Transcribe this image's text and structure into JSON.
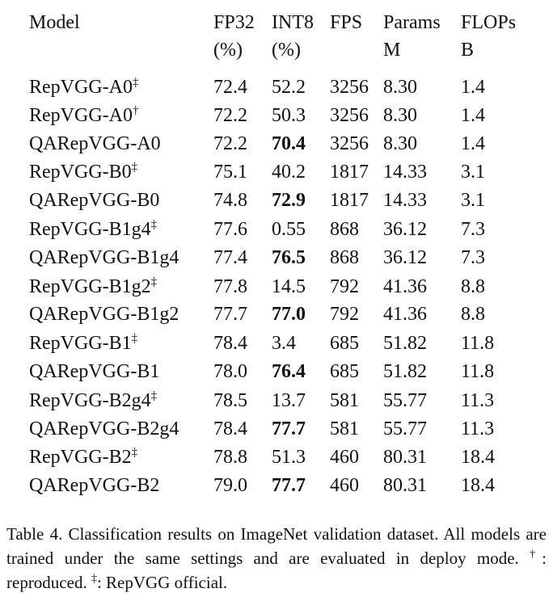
{
  "header": {
    "model": "Model",
    "fp32": [
      "FP32",
      "(%)"
    ],
    "int8": [
      "INT8",
      "(%)"
    ],
    "fps": "FPS",
    "params": [
      "Params",
      "M"
    ],
    "flops": [
      "FLOPs",
      "B"
    ]
  },
  "table": {
    "groups": [
      [
        {
          "model": "RepVGG-A0",
          "mark": "‡",
          "fp32": "72.4",
          "int8": "52.2",
          "fps": "3256",
          "params": "8.30",
          "flops": "1.4"
        },
        {
          "model": "RepVGG-A0",
          "mark": "†",
          "fp32": "72.2",
          "int8": "50.3",
          "fps": "3256",
          "params": "8.30",
          "flops": "1.4"
        },
        {
          "model": "QARepVGG-A0",
          "fp32": "72.2",
          "int8": "70.4",
          "bold": true,
          "fps": "3256",
          "params": "8.30",
          "flops": "1.4"
        }
      ],
      [
        {
          "model": "RepVGG-B0",
          "mark": "‡",
          "fp32": "75.1",
          "int8": "40.2",
          "fps": "1817",
          "params": "14.33",
          "flops": "3.1"
        },
        {
          "model": "QARepVGG-B0",
          "fp32": "74.8",
          "int8": "72.9",
          "bold": true,
          "fps": "1817",
          "params": "14.33",
          "flops": "3.1"
        }
      ],
      [
        {
          "model": "RepVGG-B1g4",
          "mark": "‡",
          "fp32": "77.6",
          "int8": "0.55",
          "fps": "868",
          "params": "36.12",
          "flops": "7.3"
        },
        {
          "model": "QARepVGG-B1g4",
          "fp32": "77.4",
          "int8": "76.5",
          "bold": true,
          "fps": "868",
          "params": "36.12",
          "flops": "7.3"
        }
      ],
      [
        {
          "model": "RepVGG-B1g2",
          "mark": "‡",
          "fp32": "77.8",
          "int8": "14.5",
          "fps": "792",
          "params": "41.36",
          "flops": "8.8"
        },
        {
          "model": "QARepVGG-B1g2",
          "fp32": "77.7",
          "int8": "77.0",
          "bold": true,
          "fps": "792",
          "params": "41.36",
          "flops": "8.8"
        }
      ],
      [
        {
          "model": "RepVGG-B1",
          "mark": "‡",
          "fp32": "78.4",
          "int8": "3.4",
          "fps": "685",
          "params": "51.82",
          "flops": "11.8"
        },
        {
          "model": "QARepVGG-B1",
          "fp32": "78.0",
          "int8": "76.4",
          "bold": true,
          "fps": "685",
          "params": "51.82",
          "flops": "11.8"
        }
      ],
      [
        {
          "model": "RepVGG-B2g4",
          "mark": "‡",
          "fp32": "78.5",
          "int8": "13.7",
          "fps": "581",
          "params": "55.77",
          "flops": "11.3"
        },
        {
          "model": "QARepVGG-B2g4",
          "fp32": "78.4",
          "int8": "77.7",
          "bold": true,
          "fps": "581",
          "params": "55.77",
          "flops": "11.3"
        }
      ],
      [
        {
          "model": "RepVGG-B2",
          "mark": "‡",
          "fp32": "78.8",
          "int8": "51.3",
          "fps": "460",
          "params": "80.31",
          "flops": "18.4"
        },
        {
          "model": "QARepVGG-B2",
          "fp32": "79.0",
          "int8": "77.7",
          "bold": true,
          "fps": "460",
          "params": "80.31",
          "flops": "18.4"
        }
      ]
    ]
  },
  "caption": {
    "text1": "Table 4. Classification results on ImageNet validation dataset. All models are trained under the same settings and are evaluated in deploy mode. ",
    "sup1": "†",
    "text2": ": reproduced. ",
    "sup2": "‡",
    "text3": ": RepVGG official."
  }
}
